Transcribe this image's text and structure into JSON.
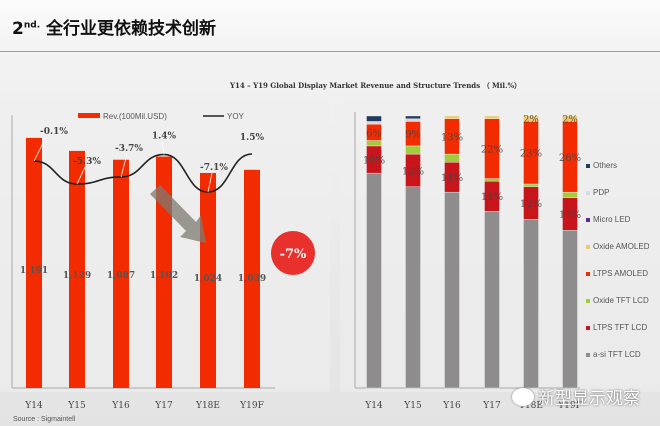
{
  "header": {
    "prefix": "2",
    "suffix": "nd.",
    "title": "全行业更依赖技术创新"
  },
  "chart_title": "Y14 – Y19 Global Display Market Revenue and Structure Trends （ Mil.%）",
  "source": "Source : Sigmaintell",
  "watermark": "新型显示观察",
  "callout": {
    "text": "-7%",
    "color": "#e8302c"
  },
  "chart_data": [
    {
      "type": "bar+line",
      "categories": [
        "Y14",
        "Y15",
        "Y16",
        "Y17",
        "Y18E",
        "Y19F"
      ],
      "series": [
        {
          "name": "Rev.(100Mil.USD)",
          "type": "bar",
          "color": "#f22c00",
          "values": [
            1191,
            1129,
            1087,
            1102,
            1024,
            1039
          ],
          "labels": [
            "1,191",
            "1,129",
            "1,087",
            "1,102",
            "1,024",
            "1,039"
          ]
        },
        {
          "name": "YOY",
          "type": "line",
          "color": "#222222",
          "values": [
            -0.1,
            -5.3,
            -3.7,
            1.4,
            -7.1,
            1.5
          ],
          "labels": [
            "-0.1%",
            "-5.3%",
            "-3.7%",
            "1.4%",
            "-7.1%",
            "1.5%"
          ]
        }
      ],
      "ylim": [
        0,
        1300
      ],
      "legend": "top"
    },
    {
      "type": "stacked-bar",
      "categories": [
        "Y14",
        "Y15",
        "Y16",
        "Y17",
        "Y18E",
        "Y19F"
      ],
      "ylim": [
        0,
        100
      ],
      "legend": "right",
      "series": [
        {
          "name": "a-si TFT LCD",
          "color": "#8f8c8e",
          "values": [
            79,
            74,
            72,
            65,
            62,
            58
          ],
          "labels": [
            "",
            "",
            "",
            "",
            "",
            ""
          ]
        },
        {
          "name": "LTPS TFT LCD",
          "color": "#c8151b",
          "values": [
            10,
            12,
            11,
            11,
            12,
            12
          ],
          "labels": [
            "10%",
            "12%",
            "11%",
            "11%",
            "12%",
            "12%"
          ]
        },
        {
          "name": "Oxide TFT LCD",
          "color": "#a3cc3a",
          "values": [
            2,
            3,
            3,
            1,
            1,
            2
          ],
          "labels": [
            "",
            "",
            "",
            "",
            "",
            ""
          ]
        },
        {
          "name": "LTPS AMOLED",
          "color": "#f22c00",
          "values": [
            6,
            9,
            13,
            22,
            23,
            26
          ],
          "labels": [
            "6%",
            "9%",
            "13%",
            "22%",
            "23%",
            "26%"
          ]
        },
        {
          "name": "Oxide AMOLED",
          "color": "#f2c86a",
          "values": [
            0,
            0,
            1,
            1,
            2,
            2
          ],
          "labels": [
            "",
            "",
            "",
            "",
            "2%",
            "2%"
          ]
        },
        {
          "name": "Micro LED",
          "color": "#5a2a8a",
          "values": [
            0,
            0,
            0,
            0,
            0,
            0
          ],
          "labels": [
            "",
            "",
            "",
            "",
            "",
            ""
          ]
        },
        {
          "name": "PDP",
          "color": "#d8dbe6",
          "values": [
            1,
            1,
            0,
            0,
            0,
            0
          ],
          "labels": [
            "",
            "",
            "",
            "",
            "",
            ""
          ]
        },
        {
          "name": "Others",
          "color": "#1f3a5a",
          "values": [
            2,
            1,
            0,
            0,
            0,
            0
          ],
          "labels": [
            "",
            "",
            "",
            "",
            "",
            ""
          ]
        }
      ]
    }
  ]
}
